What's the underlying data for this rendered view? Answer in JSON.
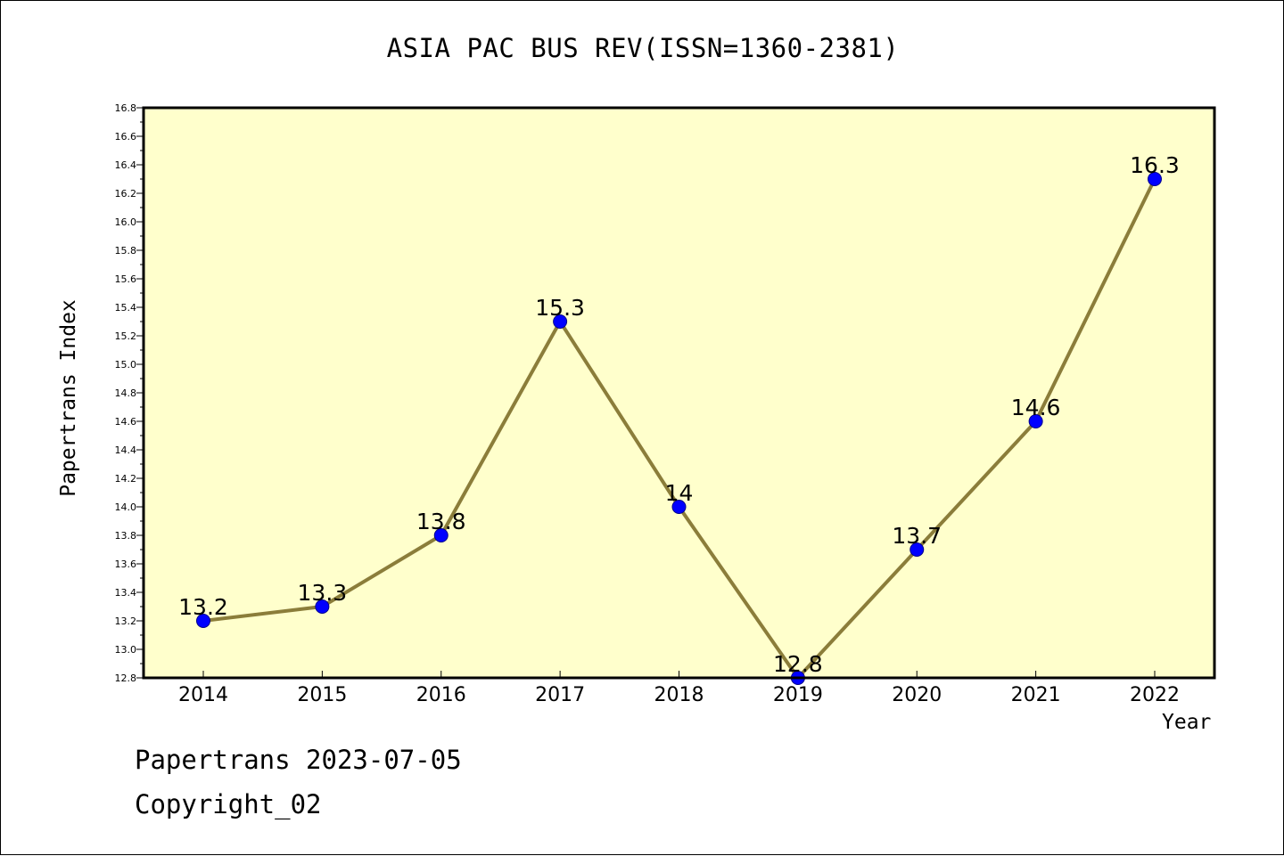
{
  "footer": {
    "date_line": "Papertrans 2023-07-05",
    "copyright": "Copyright_02"
  },
  "colors": {
    "plot_background": "#ffffcc",
    "line": "#8b7d3a",
    "marker_fill": "#0000ff",
    "marker_edge": "#00008b"
  },
  "chart_data": {
    "type": "line",
    "title": "ASIA PAC BUS REV(ISSN=1360-2381)",
    "xlabel": "Year",
    "ylabel": "Papertrans Index",
    "categories": [
      "2014",
      "2015",
      "2016",
      "2017",
      "2018",
      "2019",
      "2020",
      "2021",
      "2022"
    ],
    "series": [
      {
        "values": [
          13.2,
          13.3,
          13.8,
          15.3,
          14.0,
          12.8,
          13.7,
          14.6,
          16.3
        ],
        "labels": [
          "13.2",
          "13.3",
          "13.8",
          "15.3",
          "14",
          "12.8",
          "13.7",
          "14.6",
          "16.3"
        ]
      }
    ],
    "ylim": [
      12.8,
      16.8
    ],
    "yticks": [
      "12.8",
      "13.0",
      "13.2",
      "13.4",
      "13.6",
      "13.8",
      "14.0",
      "14.2",
      "14.4",
      "14.6",
      "14.8",
      "15.0",
      "15.2",
      "15.4",
      "15.6",
      "15.8",
      "16.0",
      "16.2",
      "16.4",
      "16.6",
      "16.8"
    ],
    "grid": false,
    "legend": "none"
  }
}
